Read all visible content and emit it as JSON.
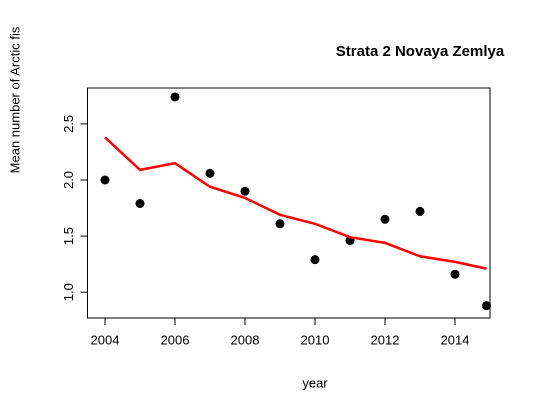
{
  "chart_data": {
    "type": "scatter",
    "title": "Strata 2 Novaya Zemlya",
    "x_label": "year",
    "y_label": "Mean number of Arctic fis",
    "xlim": [
      2003.5,
      2015.0
    ],
    "ylim": [
      0.77,
      2.82
    ],
    "xticks": [
      2004,
      2006,
      2008,
      2010,
      2012,
      2014
    ],
    "yticks": [
      {
        "value": 1.0,
        "label": "1.0"
      },
      {
        "value": 1.5,
        "label": "1.5"
      },
      {
        "value": 2.0,
        "label": "2.0"
      },
      {
        "value": 2.5,
        "label": "2.5"
      }
    ],
    "series": [
      {
        "name": "points",
        "color": "#000000",
        "marker": "point",
        "x": [
          2004,
          2005,
          2006,
          2007,
          2008,
          2009,
          2010,
          2011,
          2012,
          2013,
          2014,
          2014.9
        ],
        "values": [
          2.0,
          1.79,
          2.74,
          2.06,
          1.9,
          1.61,
          1.29,
          1.46,
          1.65,
          1.72,
          1.16,
          0.88
        ]
      },
      {
        "name": "trend",
        "color": "#ff0000",
        "marker": "line",
        "x": [
          2004,
          2005,
          2006,
          2007,
          2008,
          2009,
          2010,
          2011,
          2012,
          2013,
          2014,
          2014.9
        ],
        "values": [
          2.38,
          2.09,
          2.15,
          1.94,
          1.84,
          1.69,
          1.61,
          1.49,
          1.44,
          1.32,
          1.27,
          1.21
        ]
      }
    ]
  }
}
